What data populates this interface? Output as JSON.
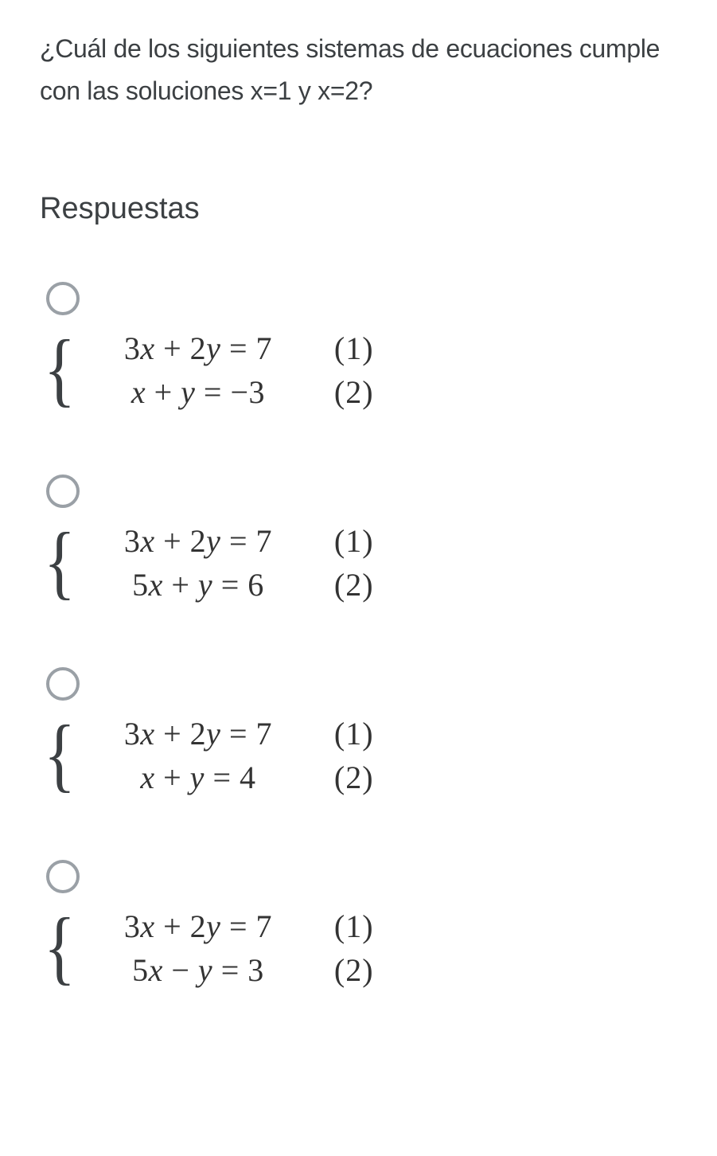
{
  "question": "¿Cuál de los siguientes sistemas de ecuaciones cumple con las soluciones x=1 y x=2?",
  "answersHeading": "Respuestas",
  "options": [
    {
      "eq1": {
        "lhs": "3x + 2y",
        "rhs": "7",
        "num": "(1)"
      },
      "eq2": {
        "lhs": "x + y",
        "rhs": "−3",
        "num": "(2)"
      }
    },
    {
      "eq1": {
        "lhs": "3x + 2y",
        "rhs": "7",
        "num": "(1)"
      },
      "eq2": {
        "lhs": "5x + y",
        "rhs": "6",
        "num": "(2)"
      }
    },
    {
      "eq1": {
        "lhs": "3x + 2y",
        "rhs": "7",
        "num": "(1)"
      },
      "eq2": {
        "lhs": "x + y",
        "rhs": "4",
        "num": "(2)"
      }
    },
    {
      "eq1": {
        "lhs": "3x + 2y",
        "rhs": "7",
        "num": "(1)"
      },
      "eq2": {
        "lhs": "5x − y",
        "rhs": "3",
        "num": "(2)"
      }
    }
  ],
  "colors": {
    "text": "#3c4043",
    "radioBorder": "#9aa0a6",
    "background": "#ffffff",
    "mathText": "#333333"
  },
  "typography": {
    "questionFontSize": 32,
    "headingFontSize": 38,
    "mathFontSize": 40
  }
}
